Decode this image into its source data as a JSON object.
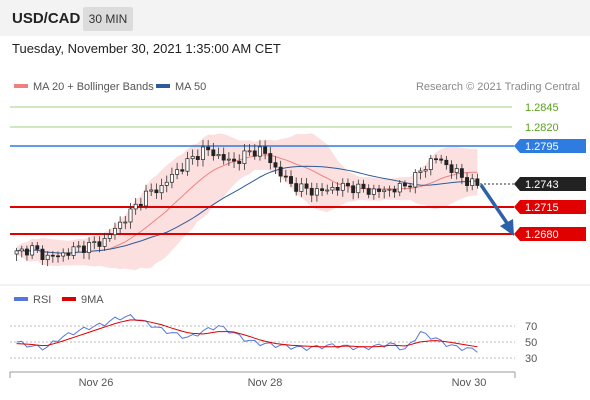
{
  "header": {
    "symbol": "USD/CAD",
    "timeframe": "30 MIN"
  },
  "datetime": "Tuesday, November 30, 2021 1:35:00 AM CET",
  "legend": {
    "ma_label": "MA 20 + Bollinger Bands",
    "ma50_label": "MA 50",
    "ma_color": "#f08080",
    "ma50_color": "#2e5c9a"
  },
  "copyright": "Research © 2021 Trading Central",
  "levels": [
    {
      "value": "1.2845",
      "type": "resistance-target",
      "color": "#5aa020"
    },
    {
      "value": "1.2820",
      "type": "resistance-target",
      "color": "#5aa020"
    },
    {
      "value": "1.2795",
      "type": "pivot",
      "color": "#2f7ce0"
    },
    {
      "value": "1.2715",
      "type": "support",
      "color": "#e00000"
    },
    {
      "value": "1.2680",
      "type": "support",
      "color": "#e00000"
    }
  ],
  "current_price": {
    "value": "1.2743",
    "color": "#222222"
  },
  "rsi_panel": {
    "rsi_label": "RSI",
    "ma_label": "9MA",
    "rsi_color": "#5577dd",
    "ma_color": "#dd0000",
    "levels": [
      "70",
      "50",
      "30"
    ]
  },
  "x_axis": {
    "ticks": [
      "Nov 26",
      "Nov 28",
      "Nov 30"
    ]
  },
  "chart_data": {
    "type": "line",
    "title": "",
    "price_range": [
      1.264,
      1.285
    ],
    "price_series": [
      1.2655,
      1.2662,
      1.265,
      1.2652,
      1.266,
      1.2665,
      1.267,
      1.269,
      1.271,
      1.2732,
      1.274,
      1.276,
      1.2775,
      1.279,
      1.2782,
      1.2772,
      1.2785,
      1.279,
      1.2765,
      1.2745,
      1.2738,
      1.2735,
      1.274,
      1.2742,
      1.2738,
      1.2735,
      1.2738,
      1.2742,
      1.276,
      1.278,
      1.2768,
      1.2752,
      1.2743
    ],
    "forecast_direction": "down",
    "rsi_series": [
      50,
      45,
      42,
      55,
      62,
      68,
      72,
      80,
      82,
      74,
      66,
      60,
      55,
      64,
      70,
      62,
      52,
      48,
      46,
      44,
      42,
      44,
      46,
      44,
      42,
      45,
      48,
      40,
      62,
      55,
      46,
      42,
      40
    ],
    "rsi_ma_series": [
      48,
      47,
      45,
      50,
      56,
      62,
      68,
      74,
      78,
      76,
      72,
      66,
      61,
      60,
      63,
      63,
      58,
      52,
      48,
      46,
      45,
      44,
      44,
      45,
      44,
      44,
      46,
      45,
      50,
      52,
      50,
      47,
      44
    ]
  }
}
